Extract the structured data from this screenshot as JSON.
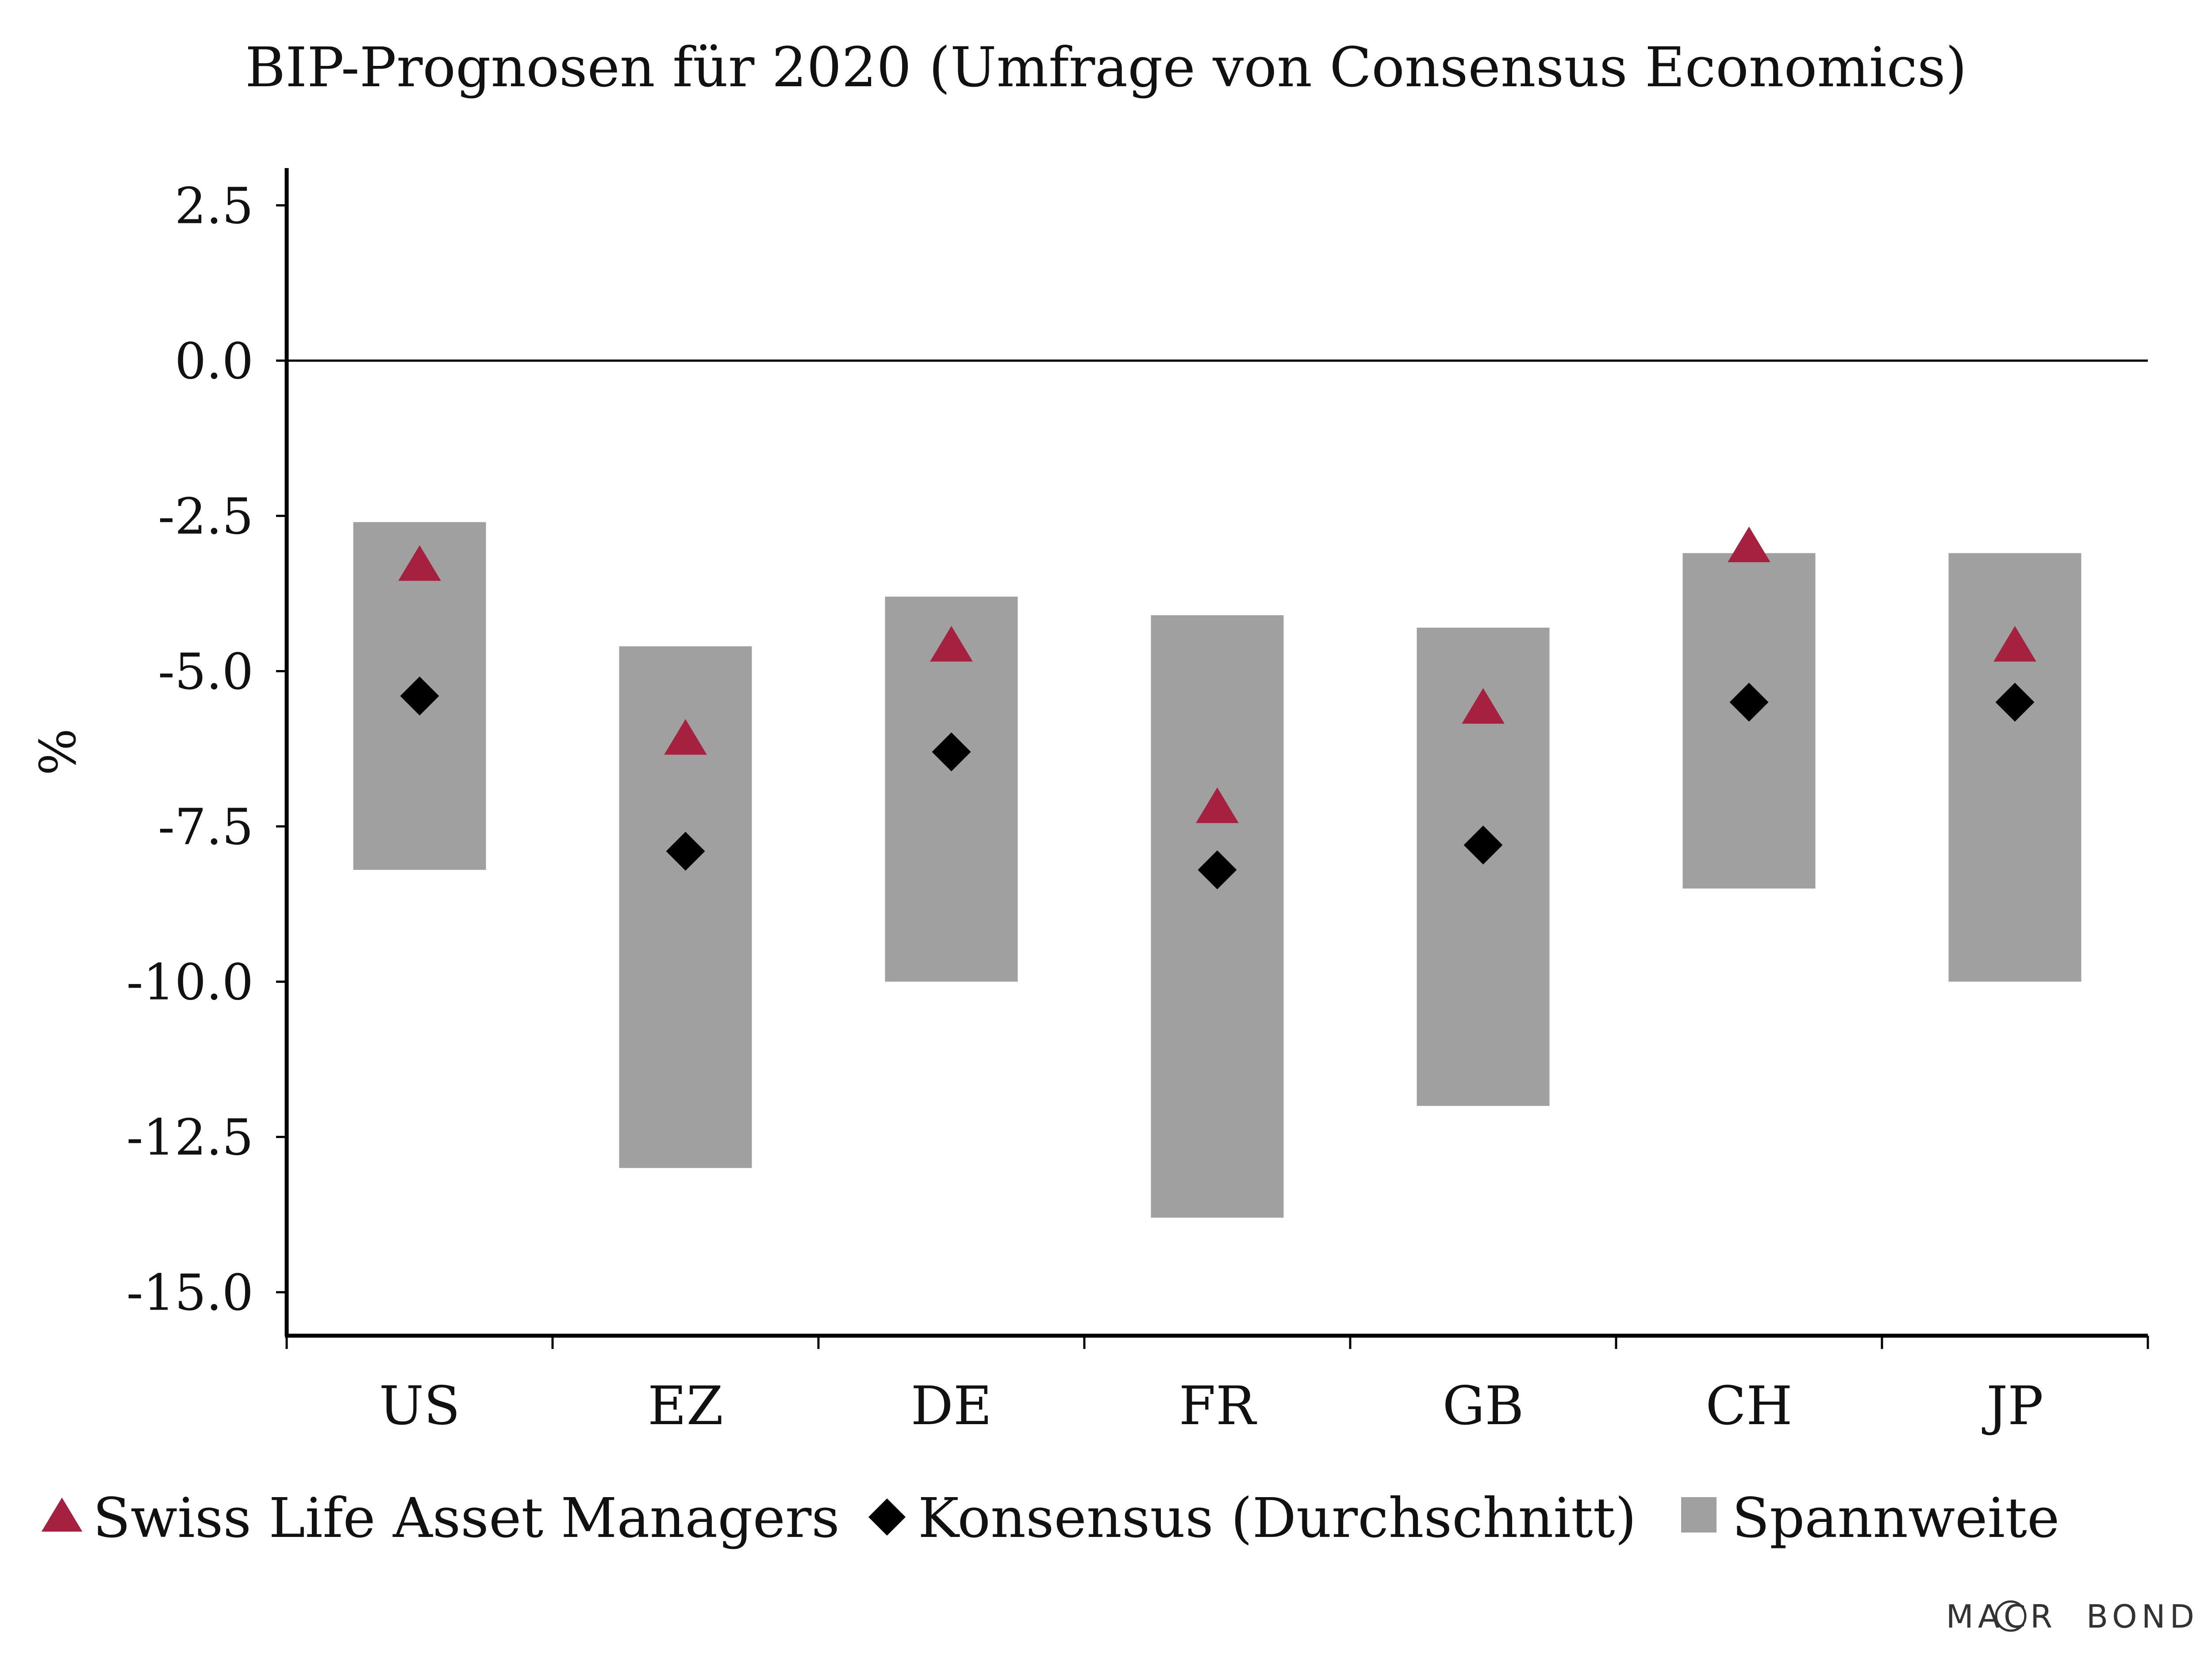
{
  "chart_data": {
    "type": "range-bar-with-markers",
    "title": "BIP-Prognosen für 2020 (Umfrage von Consensus Economics)",
    "ylabel": "%",
    "ylim": [
      -15.7,
      3.1
    ],
    "yticks": [
      2.5,
      0.0,
      -2.5,
      -5.0,
      -7.5,
      -10.0,
      -12.5,
      -15.0
    ],
    "ytick_labels": [
      "2.5",
      "0.0",
      "-2.5",
      "-5.0",
      "-7.5",
      "-10.0",
      "-12.5",
      "-15.0"
    ],
    "categories": [
      "US",
      "EZ",
      "DE",
      "FR",
      "GB",
      "CH",
      "JP"
    ],
    "range_high": [
      -2.6,
      -4.6,
      -3.8,
      -4.1,
      -4.3,
      -3.1,
      -3.1
    ],
    "range_low": [
      -8.2,
      -13.0,
      -10.0,
      -13.8,
      -12.0,
      -8.5,
      -10.0
    ],
    "swiss_life": [
      -3.3,
      -6.1,
      -4.6,
      -7.2,
      -5.6,
      -3.0,
      -4.6
    ],
    "consensus": [
      -5.4,
      -7.9,
      -6.3,
      -8.2,
      -7.8,
      -5.5,
      -5.5
    ],
    "series": [
      {
        "name": "Swiss Life Asset Managers",
        "marker": "triangle",
        "color": "#A6203F"
      },
      {
        "name": "Konsensus (Durchschnitt)",
        "marker": "diamond",
        "color": "#000000"
      },
      {
        "name": "Spannweite",
        "marker": "square",
        "color": "#A0A0A0"
      }
    ],
    "zero_line": true,
    "grid": false,
    "legend_position": "bottom"
  },
  "branding": {
    "watermark": "MACROBOND"
  }
}
